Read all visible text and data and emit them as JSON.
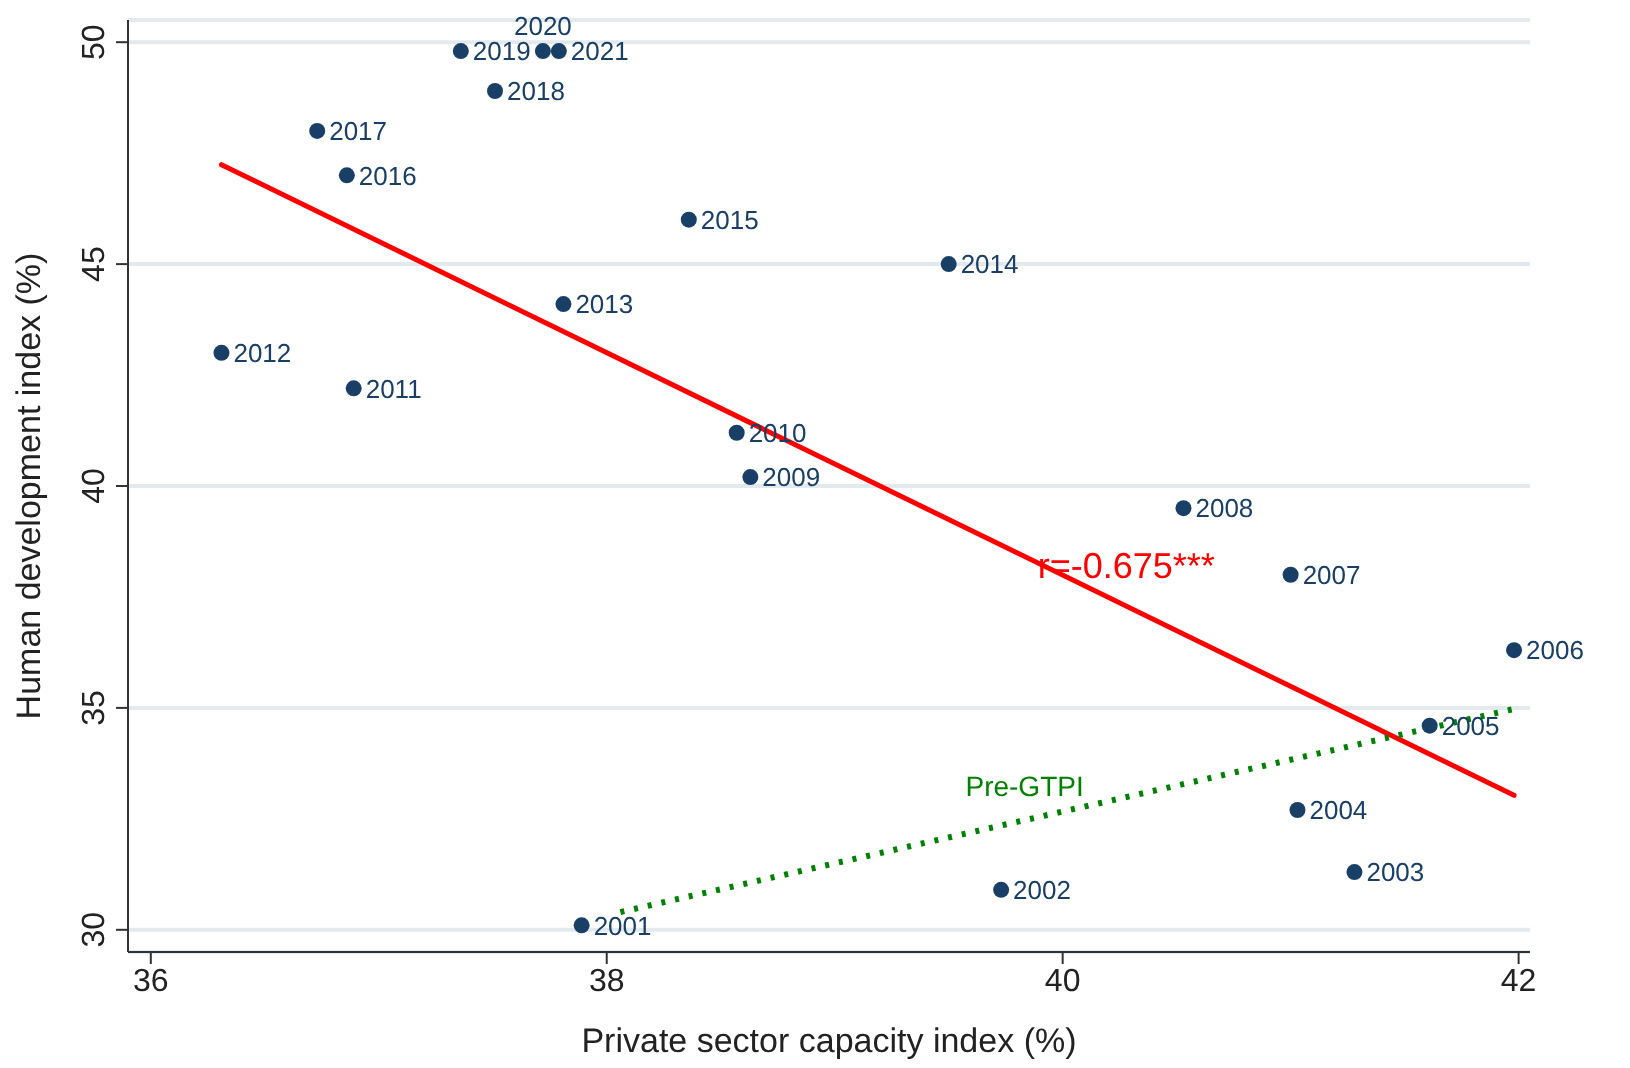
{
  "chart_data": {
    "type": "scatter",
    "xlabel": "Private sector capacity index (%)",
    "ylabel": "Human development index (%)",
    "xlim": [
      35.9,
      42.05
    ],
    "xticks": [
      36,
      38,
      40,
      42
    ],
    "ylim": [
      29.5,
      50.5
    ],
    "yticks": [
      30,
      35,
      40,
      45,
      50
    ],
    "grid": "y",
    "marker": "circle",
    "series": [
      {
        "color": "#1a3f66",
        "x": [
          37.89,
          39.73,
          41.28,
          41.03,
          41.61,
          41.98,
          41.0,
          40.53,
          38.63,
          38.57,
          36.89,
          36.31,
          37.81,
          39.5,
          38.36,
          36.86,
          36.73,
          37.51,
          37.36,
          37.72,
          37.79
        ],
        "values": [
          30.1,
          30.9,
          31.3,
          32.7,
          34.6,
          36.3,
          38.0,
          39.5,
          40.2,
          41.2,
          42.2,
          43.0,
          44.1,
          45.0,
          46.0,
          47.0,
          48.0,
          48.9,
          49.8,
          49.8,
          49.8
        ]
      },
      {
        "type": "line",
        "color": "#ff0000",
        "line_style": "solid",
        "marker": "none",
        "x": [
          36.31,
          41.98
        ],
        "values": [
          47.24,
          33.03
        ]
      },
      {
        "type": "line",
        "color": "#008000",
        "line_style": "dotted",
        "marker": "none",
        "x": [
          38.06,
          42.0
        ],
        "values": [
          30.4,
          35.0
        ]
      }
    ],
    "annotations": [
      {
        "text": "2001",
        "x": 37.89,
        "y": 30.1
      },
      {
        "text": "2002",
        "x": 39.73,
        "y": 30.9
      },
      {
        "text": "2003",
        "x": 41.28,
        "y": 31.3
      },
      {
        "text": "2004",
        "x": 41.03,
        "y": 32.7
      },
      {
        "text": "2005",
        "x": 41.61,
        "y": 34.6
      },
      {
        "text": "2006",
        "x": 41.98,
        "y": 36.3
      },
      {
        "text": "2007",
        "x": 41.0,
        "y": 38.0
      },
      {
        "text": "2008",
        "x": 40.53,
        "y": 39.5
      },
      {
        "text": "2009",
        "x": 38.63,
        "y": 40.2
      },
      {
        "text": "2010",
        "x": 38.57,
        "y": 41.2
      },
      {
        "text": "2011",
        "x": 36.89,
        "y": 42.2
      },
      {
        "text": "2012",
        "x": 36.31,
        "y": 43.0
      },
      {
        "text": "2013",
        "x": 37.81,
        "y": 44.1
      },
      {
        "text": "2014",
        "x": 39.5,
        "y": 45.0
      },
      {
        "text": "2015",
        "x": 38.36,
        "y": 46.0
      },
      {
        "text": "2016",
        "x": 36.86,
        "y": 47.0
      },
      {
        "text": "2017",
        "x": 36.73,
        "y": 48.0
      },
      {
        "text": "2018",
        "x": 37.51,
        "y": 48.9
      },
      {
        "text": "2019",
        "x": 37.36,
        "y": 49.8
      },
      {
        "text": "2020",
        "x": 37.72,
        "y": 49.8
      },
      {
        "text": "2021",
        "x": 37.79,
        "y": 49.8
      },
      "r=-0.675***",
      "Pre-GTPI"
    ]
  }
}
